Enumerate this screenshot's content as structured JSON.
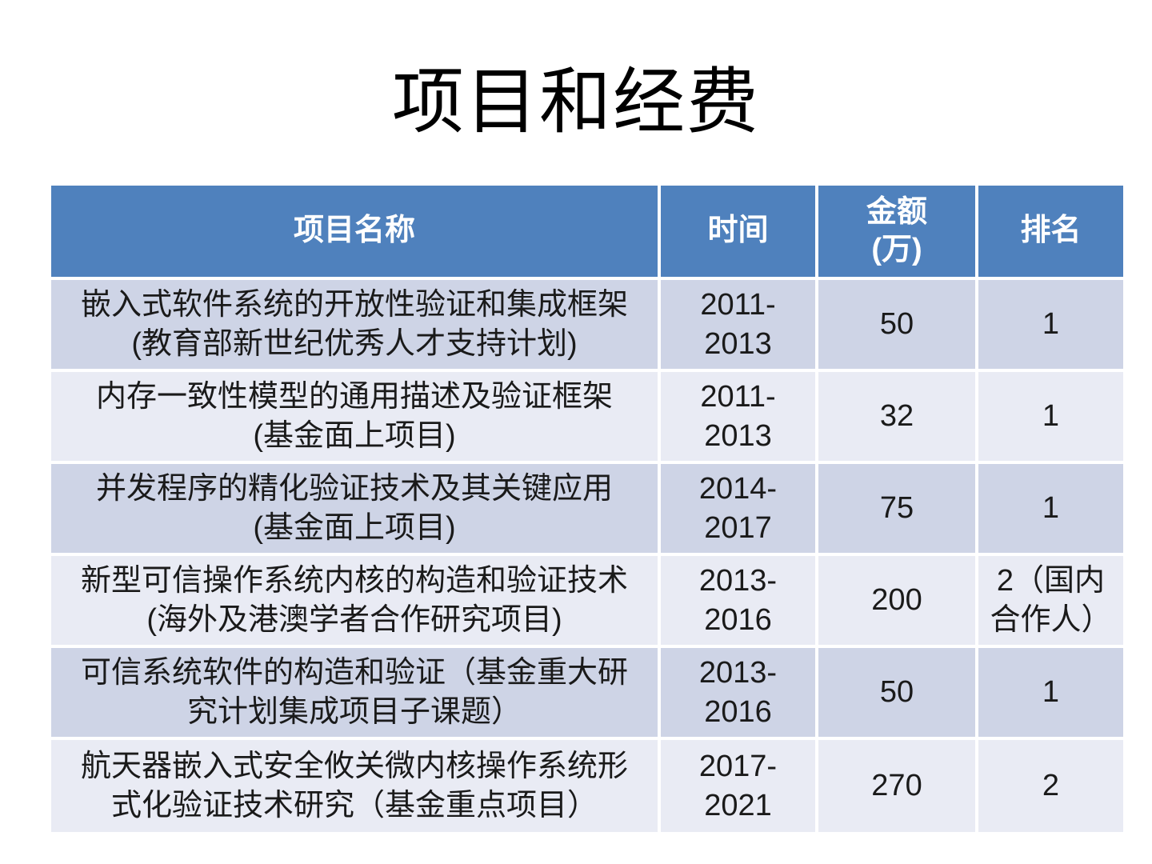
{
  "slide": {
    "title": "项目和经费"
  },
  "table": {
    "headers": {
      "project": "项目名称",
      "time": "时间",
      "amount": "金额\n(万)",
      "rank": "排名"
    },
    "rows": [
      {
        "name": "嵌入式软件系统的开放性验证和集成框架\n(教育部新世纪优秀人才支持计划)",
        "time": "2011-\n2013",
        "amount": "50",
        "rank": "1"
      },
      {
        "name": "内存一致性模型的通用描述及验证框架\n(基金面上项目)",
        "time": "2011-\n2013",
        "amount": "32",
        "rank": "1"
      },
      {
        "name": "并发程序的精化验证技术及其关键应用\n(基金面上项目)",
        "time": "2014-\n2017",
        "amount": "75",
        "rank": "1"
      },
      {
        "name": "新型可信操作系统内核的构造和验证技术\n(海外及港澳学者合作研究项目)",
        "time": "2013-\n2016",
        "amount": "200",
        "rank": "2（国内\n合作人）"
      },
      {
        "name": "可信系统软件的构造和验证（基金重大研\n究计划集成项目子课题）",
        "time": "2013-\n2016",
        "amount": "50",
        "rank": "1"
      },
      {
        "name": "航天器嵌入式安全攸关微内核操作系统形\n式化验证技术研究（基金重点项目）",
        "time": "2017-\n2021",
        "amount": "270",
        "rank": "2"
      }
    ]
  },
  "colors": {
    "header_bg": "#4F81BD",
    "header_text": "#FFFFFF",
    "band_dark": "#CED4E6",
    "band_light": "#E9EBF4",
    "body_text": "#1A1A1A",
    "title_text": "#000000",
    "border": "#FFFFFF"
  }
}
